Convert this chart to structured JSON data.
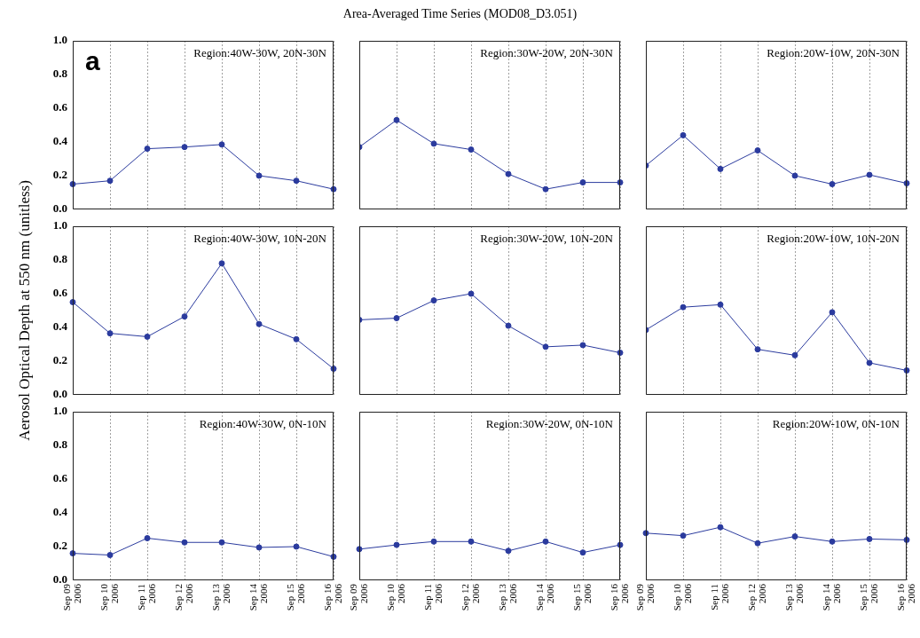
{
  "chart_data": [
    {
      "type": "line",
      "title": "Region:40W-30W, 20N-30N",
      "annotations": [
        "Area-Averaged Time Series (MOD08_D3.051)",
        "a"
      ],
      "x": [
        "2006-09-09",
        "2006-09-10",
        "2006-09-11",
        "2006-09-12",
        "2006-09-13",
        "2006-09-14",
        "2006-09-15",
        "2006-09-16"
      ],
      "values": [
        0.15,
        0.17,
        0.36,
        0.37,
        0.385,
        0.2,
        0.17,
        0.12
      ],
      "color": "#2b3b9e",
      "xlim": [
        "2006-09-09",
        "2006-09-16"
      ],
      "ylim": [
        0,
        1
      ],
      "xticks": [
        {
          "value": "2006-09-09",
          "label": null
        },
        {
          "value": "2006-09-10",
          "label": null
        },
        {
          "value": "2006-09-11",
          "label": null
        },
        {
          "value": "2006-09-12",
          "label": null
        },
        {
          "value": "2006-09-13",
          "label": null
        },
        {
          "value": "2006-09-14",
          "label": null
        },
        {
          "value": "2006-09-15",
          "label": null
        },
        {
          "value": "2006-09-16",
          "label": null
        }
      ],
      "yticks": [
        {
          "value": 0,
          "label": "0.0"
        },
        {
          "value": 0.2,
          "label": "0.2"
        },
        {
          "value": 0.4,
          "label": "0.4"
        },
        {
          "value": 0.6,
          "label": "0.6"
        },
        {
          "value": 0.8,
          "label": "0.8"
        },
        {
          "value": 1,
          "label": "1.0"
        }
      ],
      "tick_labels": "y",
      "grid": "x",
      "marker": "circle",
      "line_style": "solid"
    },
    {
      "type": "line",
      "title": "Region:30W-20W, 20N-30N",
      "x": [
        "2006-09-09",
        "2006-09-10",
        "2006-09-11",
        "2006-09-12",
        "2006-09-13",
        "2006-09-14",
        "2006-09-15",
        "2006-09-16"
      ],
      "values": [
        0.37,
        0.53,
        0.39,
        0.355,
        0.21,
        0.12,
        0.16,
        0.16
      ],
      "color": "#2b3b9e",
      "xlim": [
        "2006-09-09",
        "2006-09-16"
      ],
      "ylim": [
        0,
        1
      ],
      "xticks": [
        {
          "value": "2006-09-09",
          "label": null
        },
        {
          "value": "2006-09-10",
          "label": null
        },
        {
          "value": "2006-09-11",
          "label": null
        },
        {
          "value": "2006-09-12",
          "label": null
        },
        {
          "value": "2006-09-13",
          "label": null
        },
        {
          "value": "2006-09-14",
          "label": null
        },
        {
          "value": "2006-09-15",
          "label": null
        },
        {
          "value": "2006-09-16",
          "label": null
        }
      ],
      "yticks": [
        {
          "value": 0,
          "label": null
        },
        {
          "value": 0.2,
          "label": null
        },
        {
          "value": 0.4,
          "label": null
        },
        {
          "value": 0.6,
          "label": null
        },
        {
          "value": 0.8,
          "label": null
        },
        {
          "value": 1,
          "label": null
        }
      ],
      "tick_labels": false,
      "grid": "x",
      "marker": "circle",
      "line_style": "solid"
    },
    {
      "type": "line",
      "title": "Region:20W-10W, 20N-30N",
      "x": [
        "2006-09-09",
        "2006-09-10",
        "2006-09-11",
        "2006-09-12",
        "2006-09-13",
        "2006-09-14",
        "2006-09-15",
        "2006-09-16"
      ],
      "values": [
        0.26,
        0.44,
        0.24,
        0.35,
        0.2,
        0.15,
        0.205,
        0.155
      ],
      "color": "#2b3b9e",
      "xlim": [
        "2006-09-09",
        "2006-09-16"
      ],
      "ylim": [
        0,
        1
      ],
      "xticks": [
        {
          "value": "2006-09-09",
          "label": null
        },
        {
          "value": "2006-09-10",
          "label": null
        },
        {
          "value": "2006-09-11",
          "label": null
        },
        {
          "value": "2006-09-12",
          "label": null
        },
        {
          "value": "2006-09-13",
          "label": null
        },
        {
          "value": "2006-09-14",
          "label": null
        },
        {
          "value": "2006-09-15",
          "label": null
        },
        {
          "value": "2006-09-16",
          "label": null
        }
      ],
      "yticks": [
        {
          "value": 0,
          "label": null
        },
        {
          "value": 0.2,
          "label": null
        },
        {
          "value": 0.4,
          "label": null
        },
        {
          "value": 0.6,
          "label": null
        },
        {
          "value": 0.8,
          "label": null
        },
        {
          "value": 1,
          "label": null
        }
      ],
      "tick_labels": false,
      "grid": "x",
      "marker": "circle",
      "line_style": "solid"
    },
    {
      "type": "line",
      "title": "Region:40W-30W, 10N-20N",
      "ylabel": "Aerosol Optical Depth at 550 nm (unitless)",
      "x": [
        "2006-09-09",
        "2006-09-10",
        "2006-09-11",
        "2006-09-12",
        "2006-09-13",
        "2006-09-14",
        "2006-09-15",
        "2006-09-16"
      ],
      "values": [
        0.55,
        0.365,
        0.345,
        0.465,
        0.78,
        0.42,
        0.33,
        0.155
      ],
      "color": "#2b3b9e",
      "xlim": [
        "2006-09-09",
        "2006-09-16"
      ],
      "ylim": [
        0,
        1
      ],
      "xticks": [
        {
          "value": "2006-09-09",
          "label": null
        },
        {
          "value": "2006-09-10",
          "label": null
        },
        {
          "value": "2006-09-11",
          "label": null
        },
        {
          "value": "2006-09-12",
          "label": null
        },
        {
          "value": "2006-09-13",
          "label": null
        },
        {
          "value": "2006-09-14",
          "label": null
        },
        {
          "value": "2006-09-15",
          "label": null
        },
        {
          "value": "2006-09-16",
          "label": null
        }
      ],
      "yticks": [
        {
          "value": 0,
          "label": "0.0"
        },
        {
          "value": 0.2,
          "label": "0.2"
        },
        {
          "value": 0.4,
          "label": "0.4"
        },
        {
          "value": 0.6,
          "label": "0.6"
        },
        {
          "value": 0.8,
          "label": "0.8"
        },
        {
          "value": 1,
          "label": "1.0"
        }
      ],
      "tick_labels": "y",
      "grid": "x",
      "marker": "circle",
      "line_style": "solid"
    },
    {
      "type": "line",
      "title": "Region:30W-20W, 10N-20N",
      "x": [
        "2006-09-09",
        "2006-09-10",
        "2006-09-11",
        "2006-09-12",
        "2006-09-13",
        "2006-09-14",
        "2006-09-15",
        "2006-09-16"
      ],
      "values": [
        0.445,
        0.455,
        0.56,
        0.6,
        0.41,
        0.285,
        0.295,
        0.25
      ],
      "color": "#2b3b9e",
      "xlim": [
        "2006-09-09",
        "2006-09-16"
      ],
      "ylim": [
        0,
        1
      ],
      "xticks": [
        {
          "value": "2006-09-09",
          "label": null
        },
        {
          "value": "2006-09-10",
          "label": null
        },
        {
          "value": "2006-09-11",
          "label": null
        },
        {
          "value": "2006-09-12",
          "label": null
        },
        {
          "value": "2006-09-13",
          "label": null
        },
        {
          "value": "2006-09-14",
          "label": null
        },
        {
          "value": "2006-09-15",
          "label": null
        },
        {
          "value": "2006-09-16",
          "label": null
        }
      ],
      "yticks": [
        {
          "value": 0,
          "label": null
        },
        {
          "value": 0.2,
          "label": null
        },
        {
          "value": 0.4,
          "label": null
        },
        {
          "value": 0.6,
          "label": null
        },
        {
          "value": 0.8,
          "label": null
        },
        {
          "value": 1,
          "label": null
        }
      ],
      "tick_labels": false,
      "grid": "x",
      "marker": "circle",
      "line_style": "solid"
    },
    {
      "type": "line",
      "title": "Region:20W-10W, 10N-20N",
      "x": [
        "2006-09-09",
        "2006-09-10",
        "2006-09-11",
        "2006-09-12",
        "2006-09-13",
        "2006-09-14",
        "2006-09-15",
        "2006-09-16"
      ],
      "values": [
        0.385,
        0.52,
        0.535,
        0.27,
        0.235,
        0.49,
        0.19,
        0.145
      ],
      "color": "#2b3b9e",
      "xlim": [
        "2006-09-09",
        "2006-09-16"
      ],
      "ylim": [
        0,
        1
      ],
      "xticks": [
        {
          "value": "2006-09-09",
          "label": null
        },
        {
          "value": "2006-09-10",
          "label": null
        },
        {
          "value": "2006-09-11",
          "label": null
        },
        {
          "value": "2006-09-12",
          "label": null
        },
        {
          "value": "2006-09-13",
          "label": null
        },
        {
          "value": "2006-09-14",
          "label": null
        },
        {
          "value": "2006-09-15",
          "label": null
        },
        {
          "value": "2006-09-16",
          "label": null
        }
      ],
      "yticks": [
        {
          "value": 0,
          "label": null
        },
        {
          "value": 0.2,
          "label": null
        },
        {
          "value": 0.4,
          "label": null
        },
        {
          "value": 0.6,
          "label": null
        },
        {
          "value": 0.8,
          "label": null
        },
        {
          "value": 1,
          "label": null
        }
      ],
      "tick_labels": false,
      "grid": "x",
      "marker": "circle",
      "line_style": "solid"
    },
    {
      "type": "line",
      "title": "Region:40W-30W, 0N-10N",
      "x": [
        "2006-09-09",
        "2006-09-10",
        "2006-09-11",
        "2006-09-12",
        "2006-09-13",
        "2006-09-14",
        "2006-09-15",
        "2006-09-16"
      ],
      "values": [
        0.16,
        0.15,
        0.25,
        0.225,
        0.225,
        0.195,
        0.2,
        0.14
      ],
      "color": "#2b3b9e",
      "xlim": [
        "2006-09-09",
        "2006-09-16"
      ],
      "ylim": [
        0,
        1
      ],
      "xticks": [
        {
          "value": "2006-09-09",
          "label": "Sep 09\n2006"
        },
        {
          "value": "2006-09-10",
          "label": "Sep 10\n2006"
        },
        {
          "value": "2006-09-11",
          "label": "Sep 11\n2006"
        },
        {
          "value": "2006-09-12",
          "label": "Sep 12\n2006"
        },
        {
          "value": "2006-09-13",
          "label": "Sep 13\n2006"
        },
        {
          "value": "2006-09-14",
          "label": "Sep 14\n2006"
        },
        {
          "value": "2006-09-15",
          "label": "Sep 15\n2006"
        },
        {
          "value": "2006-09-16",
          "label": "Sep 16\n2006"
        }
      ],
      "yticks": [
        {
          "value": 0,
          "label": "0.0"
        },
        {
          "value": 0.2,
          "label": "0.2"
        },
        {
          "value": 0.4,
          "label": "0.4"
        },
        {
          "value": 0.6,
          "label": "0.6"
        },
        {
          "value": 0.8,
          "label": "0.8"
        },
        {
          "value": 1,
          "label": "1.0"
        }
      ],
      "grid": "x",
      "marker": "circle",
      "line_style": "solid"
    },
    {
      "type": "line",
      "title": "Region:30W-20W, 0N-10N",
      "x": [
        "2006-09-09",
        "2006-09-10",
        "2006-09-11",
        "2006-09-12",
        "2006-09-13",
        "2006-09-14",
        "2006-09-15",
        "2006-09-16"
      ],
      "values": [
        0.185,
        0.21,
        0.23,
        0.23,
        0.175,
        0.23,
        0.165,
        0.21
      ],
      "color": "#2b3b9e",
      "xlim": [
        "2006-09-09",
        "2006-09-16"
      ],
      "ylim": [
        0,
        1
      ],
      "xticks": [
        {
          "value": "2006-09-09",
          "label": "Sep 09\n2006"
        },
        {
          "value": "2006-09-10",
          "label": "Sep 10\n2006"
        },
        {
          "value": "2006-09-11",
          "label": "Sep 11\n2006"
        },
        {
          "value": "2006-09-12",
          "label": "Sep 12\n2006"
        },
        {
          "value": "2006-09-13",
          "label": "Sep 13\n2006"
        },
        {
          "value": "2006-09-14",
          "label": "Sep 14\n2006"
        },
        {
          "value": "2006-09-15",
          "label": "Sep 15\n2006"
        },
        {
          "value": "2006-09-16",
          "label": "Sep 16\n2006"
        }
      ],
      "yticks": [
        {
          "value": 0,
          "label": null
        },
        {
          "value": 0.2,
          "label": null
        },
        {
          "value": 0.4,
          "label": null
        },
        {
          "value": 0.6,
          "label": null
        },
        {
          "value": 0.8,
          "label": null
        },
        {
          "value": 1,
          "label": null
        }
      ],
      "tick_labels": "x",
      "grid": "x",
      "marker": "circle",
      "line_style": "solid"
    },
    {
      "type": "line",
      "title": "Region:20W-10W, 0N-10N",
      "x": [
        "2006-09-09",
        "2006-09-10",
        "2006-09-11",
        "2006-09-12",
        "2006-09-13",
        "2006-09-14",
        "2006-09-15",
        "2006-09-16"
      ],
      "values": [
        0.28,
        0.265,
        0.315,
        0.22,
        0.26,
        0.23,
        0.245,
        0.24
      ],
      "color": "#2b3b9e",
      "xlim": [
        "2006-09-09",
        "2006-09-16"
      ],
      "ylim": [
        0,
        1
      ],
      "xticks": [
        {
          "value": "2006-09-09",
          "label": "Sep 09\n2006"
        },
        {
          "value": "2006-09-10",
          "label": "Sep 10\n2006"
        },
        {
          "value": "2006-09-11",
          "label": "Sep 11\n2006"
        },
        {
          "value": "2006-09-12",
          "label": "Sep 12\n2006"
        },
        {
          "value": "2006-09-13",
          "label": "Sep 13\n2006"
        },
        {
          "value": "2006-09-14",
          "label": "Sep 14\n2006"
        },
        {
          "value": "2006-09-15",
          "label": "Sep 15\n2006"
        },
        {
          "value": "2006-09-16",
          "label": "Sep 16\n2006"
        }
      ],
      "yticks": [
        {
          "value": 0,
          "label": null
        },
        {
          "value": 0.2,
          "label": null
        },
        {
          "value": 0.4,
          "label": null
        },
        {
          "value": 0.6,
          "label": null
        },
        {
          "value": 0.8,
          "label": null
        },
        {
          "value": 1,
          "label": null
        }
      ],
      "tick_labels": "x",
      "grid": "x",
      "marker": "circle",
      "line_style": "solid"
    }
  ]
}
